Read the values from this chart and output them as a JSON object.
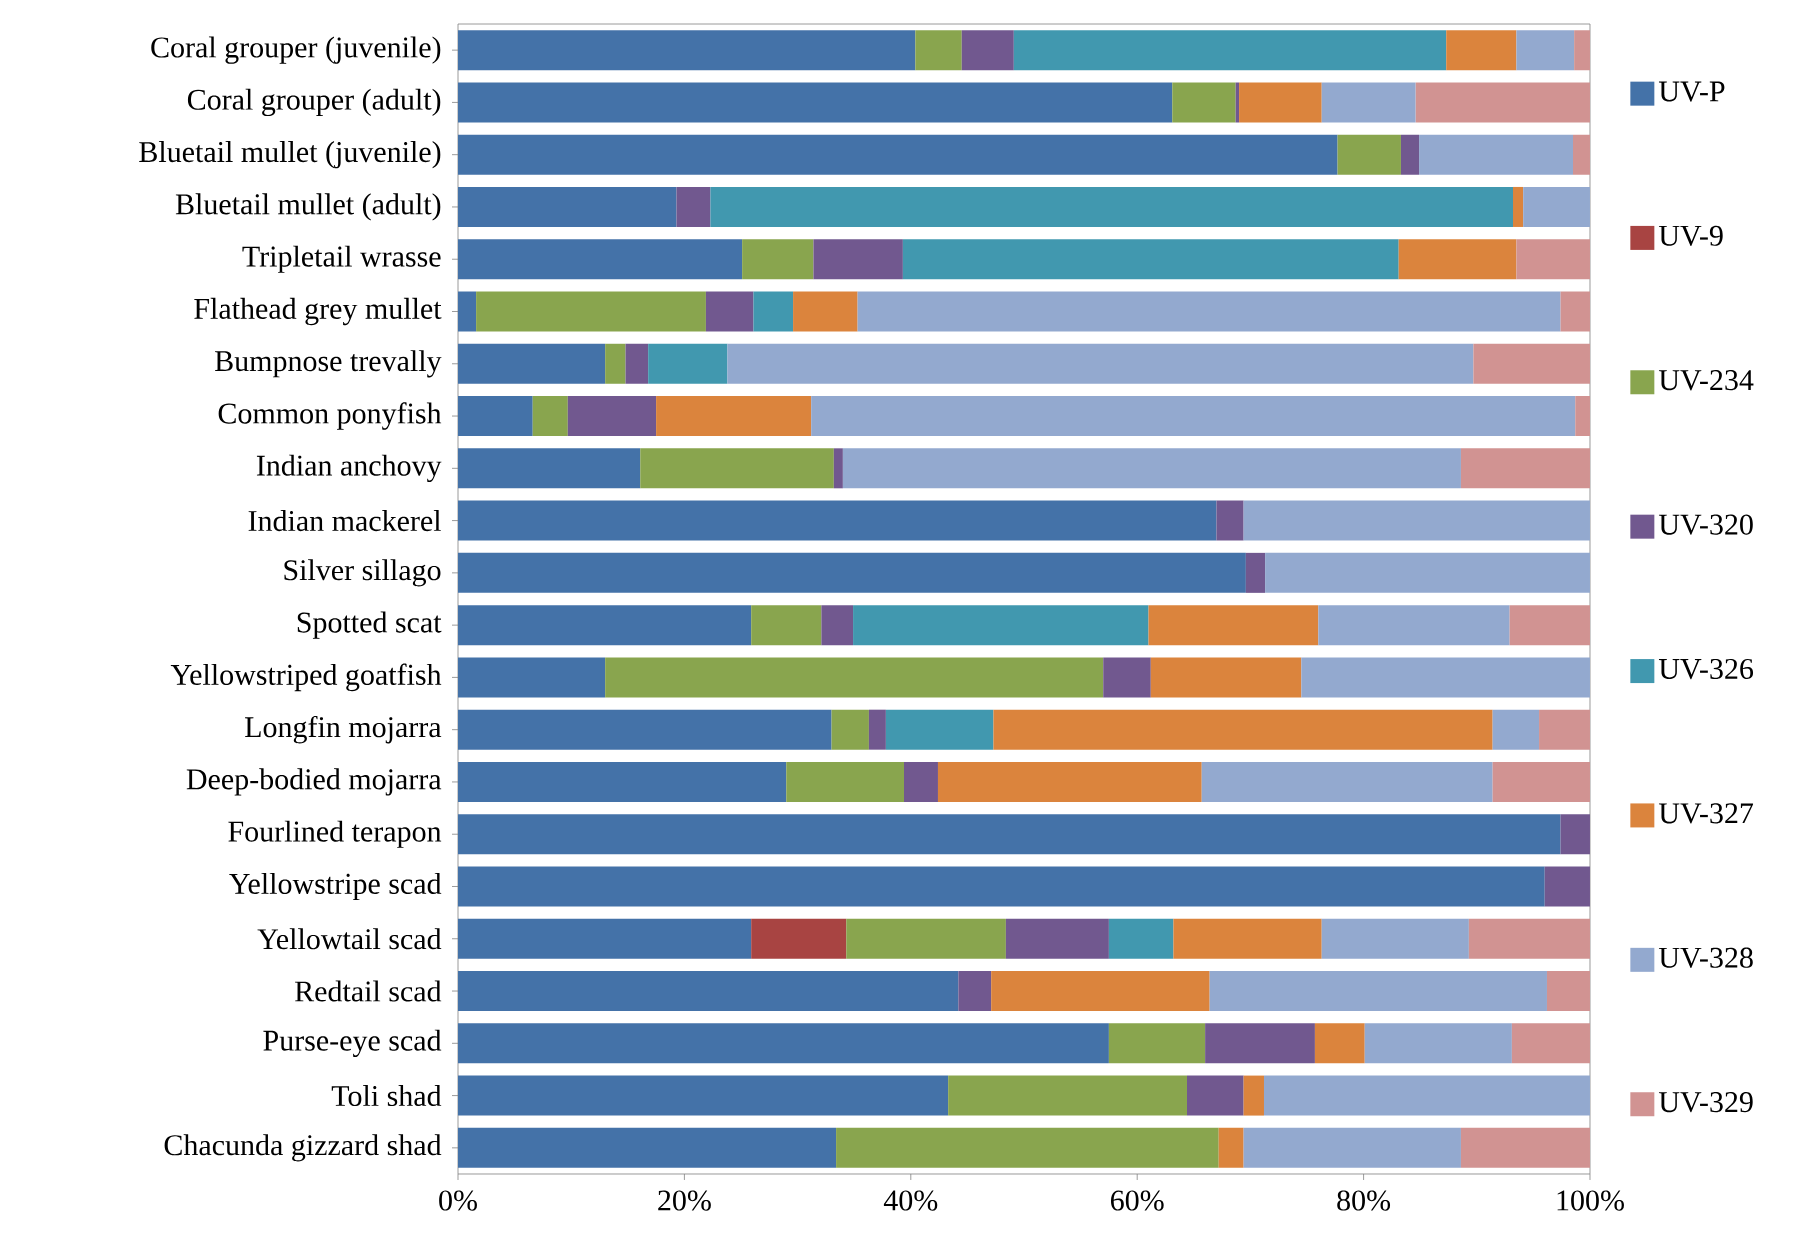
{
  "chart_data": {
    "type": "bar",
    "orientation": "horizontal",
    "stacked": true,
    "legend": "right",
    "grid": false,
    "categories": [
      "Coral grouper (juvenile)",
      "Coral grouper (adult)",
      "Bluetail mullet  (juvenile)",
      "Bluetail mullet  (adult)",
      "Tripletail wrasse",
      "Flathead grey mullet",
      "Bumpnose trevally",
      "Common ponyfish",
      "Indian anchovy",
      "Indian mackerel",
      "Silver sillago",
      "Spotted scat",
      "Yellowstriped goatfish",
      "Longfin mojarra",
      "Deep-bodied mojarra",
      "Fourlined terapon",
      "Yellowstripe scad",
      "Yellowtail scad",
      "Redtail scad",
      "Purse-eye scad",
      "Toli shad",
      "Chacunda gizzard shad"
    ],
    "xlim": [
      0,
      100
    ],
    "xticks": [
      {
        "value": 0,
        "label": "0%"
      },
      {
        "value": 20,
        "label": "20%"
      },
      {
        "value": 40,
        "label": "40%"
      },
      {
        "value": 60,
        "label": "60%"
      },
      {
        "value": 80,
        "label": "80%"
      },
      {
        "value": 100,
        "label": "100%"
      }
    ],
    "series": [
      {
        "name": "UV-P",
        "color": "#4472a8",
        "values": [
          40.4,
          63.1,
          77.7,
          19.3,
          25.1,
          1.6,
          13.0,
          6.6,
          16.1,
          67.0,
          69.6,
          25.9,
          13.0,
          33.0,
          29.0,
          97.4,
          96.0,
          25.9,
          44.2,
          57.5,
          43.3,
          33.4
        ]
      },
      {
        "name": "UV-9",
        "color": "#a84442",
        "values": [
          null,
          null,
          null,
          null,
          null,
          null,
          null,
          null,
          null,
          null,
          null,
          null,
          null,
          null,
          null,
          null,
          null,
          8.4,
          null,
          null,
          null,
          null
        ]
      },
      {
        "name": "UV-234",
        "color": "#89a54e",
        "values": [
          4.1,
          5.6,
          5.6,
          null,
          6.3,
          20.3,
          1.8,
          3.1,
          17.1,
          null,
          null,
          6.2,
          44.0,
          3.3,
          10.4,
          null,
          null,
          14.1,
          null,
          8.5,
          21.1,
          33.8
        ]
      },
      {
        "name": "UV-320",
        "color": "#71588f",
        "values": [
          4.6,
          0.3,
          1.6,
          3.0,
          7.9,
          4.2,
          2.0,
          7.8,
          0.8,
          2.4,
          1.7,
          2.8,
          4.2,
          1.5,
          3.0,
          2.6,
          4.0,
          9.1,
          2.9,
          9.7,
          5.0,
          null
        ]
      },
      {
        "name": "UV-326",
        "color": "#4198af",
        "values": [
          38.2,
          null,
          null,
          70.9,
          43.8,
          3.5,
          7.0,
          null,
          null,
          null,
          null,
          26.1,
          null,
          9.5,
          null,
          null,
          null,
          5.7,
          null,
          null,
          null,
          null
        ]
      },
      {
        "name": "UV-327",
        "color": "#db843d",
        "values": [
          6.2,
          7.3,
          null,
          0.9,
          10.4,
          5.7,
          null,
          13.7,
          null,
          null,
          null,
          15.0,
          13.3,
          44.1,
          23.3,
          null,
          null,
          13.1,
          19.3,
          4.4,
          1.8,
          2.2
        ]
      },
      {
        "name": "UV-328",
        "color": "#93a9cf",
        "values": [
          5.1,
          8.3,
          13.6,
          5.9,
          null,
          62.1,
          65.9,
          67.5,
          54.6,
          30.6,
          28.7,
          16.9,
          25.5,
          4.1,
          25.7,
          null,
          null,
          13.0,
          29.8,
          13.0,
          28.8,
          19.2
        ]
      },
      {
        "name": "UV-329",
        "color": "#d19392",
        "values": [
          1.4,
          15.4,
          1.5,
          null,
          6.5,
          2.6,
          10.3,
          1.3,
          11.4,
          null,
          null,
          7.1,
          null,
          4.5,
          8.6,
          null,
          null,
          10.7,
          3.8,
          6.9,
          null,
          11.4
        ]
      }
    ]
  }
}
